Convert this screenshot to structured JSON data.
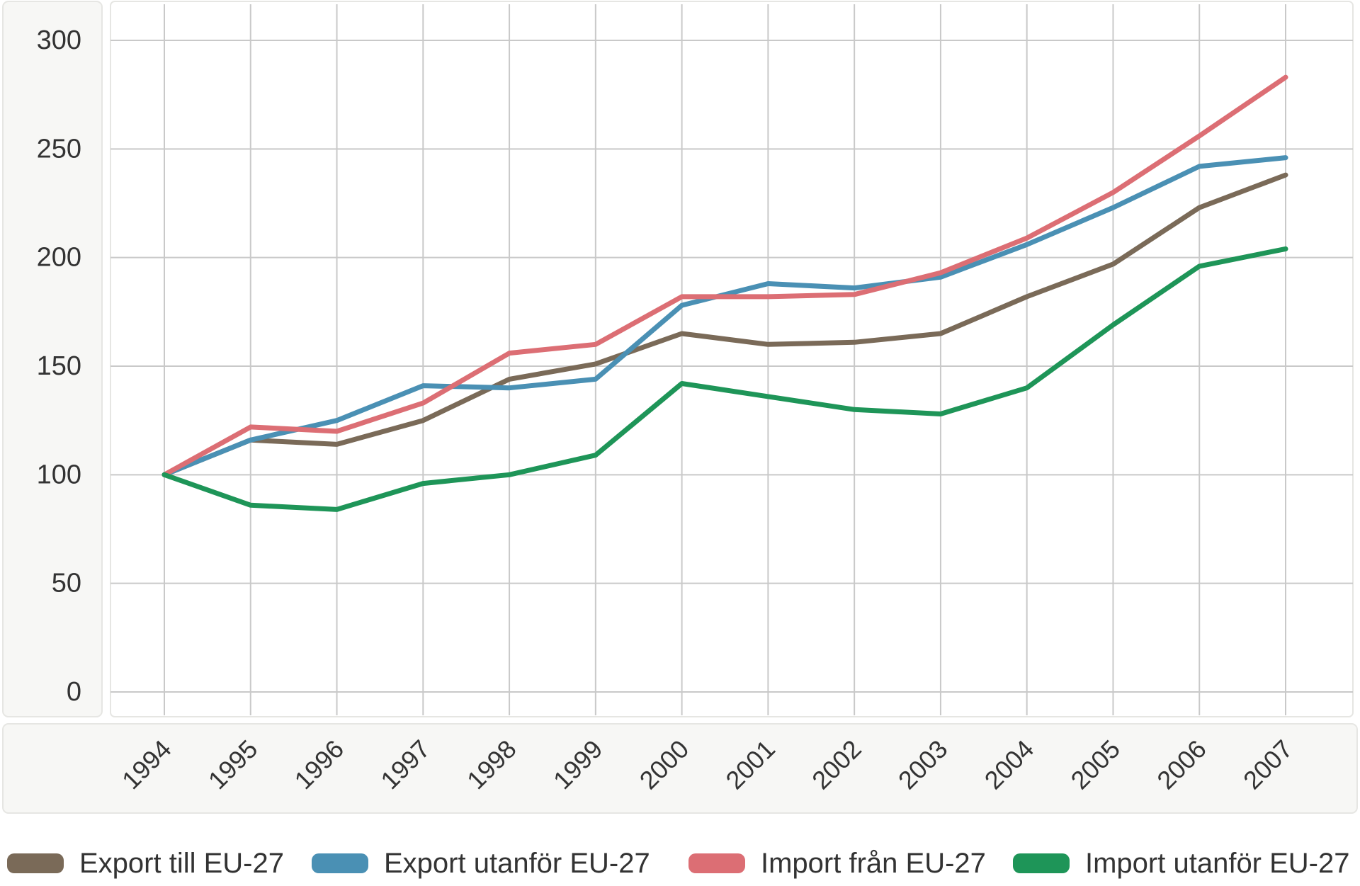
{
  "chart_data": {
    "type": "line",
    "title": "",
    "xlabel": "",
    "ylabel": "",
    "x": [
      "1994",
      "1995",
      "1996",
      "1997",
      "1998",
      "1999",
      "2000",
      "2001",
      "2002",
      "2003",
      "2004",
      "2005",
      "2006",
      "2007"
    ],
    "ylim": [
      0,
      300
    ],
    "yticks": [
      0,
      50,
      100,
      150,
      200,
      250,
      300
    ],
    "grid": true,
    "legend_position": "bottom",
    "series": [
      {
        "name": "Export till EU-27",
        "color": "#7a6a58",
        "values": [
          100,
          116,
          114,
          125,
          144,
          151,
          165,
          160,
          161,
          165,
          182,
          197,
          223,
          238
        ]
      },
      {
        "name": "Export utanför EU-27",
        "color": "#4a90b4",
        "values": [
          100,
          116,
          125,
          141,
          140,
          144,
          178,
          188,
          186,
          191,
          206,
          223,
          242,
          246
        ]
      },
      {
        "name": "Import från EU-27",
        "color": "#dc6e74",
        "values": [
          100,
          122,
          120,
          133,
          156,
          160,
          182,
          182,
          183,
          193,
          209,
          230,
          256,
          283
        ]
      },
      {
        "name": "Import utanför EU-27",
        "color": "#1e9558",
        "values": [
          100,
          86,
          84,
          96,
          100,
          109,
          142,
          136,
          130,
          128,
          140,
          169,
          196,
          204
        ]
      }
    ]
  }
}
